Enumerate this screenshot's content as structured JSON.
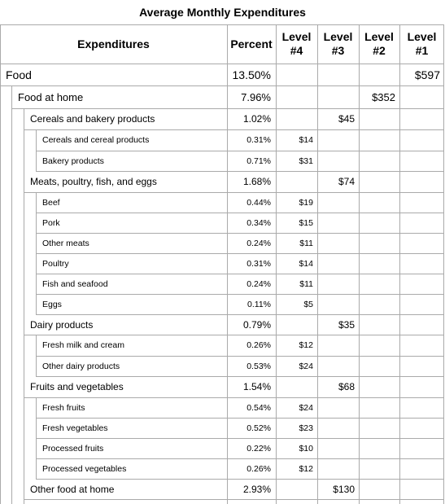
{
  "title": "Average Monthly Expenditures",
  "headers": {
    "expenditures": "Expenditures",
    "percent": "Percent",
    "level4": "Level\n#4",
    "level3": "Level\n#3",
    "level2": "Level\n#2",
    "level1": "Level\n#1"
  },
  "rows": [
    {
      "label": "Food",
      "depth": 0,
      "percent": "13.50%",
      "level": 1,
      "amount": "$597"
    },
    {
      "label": "Food at home",
      "depth": 1,
      "percent": "7.96%",
      "level": 2,
      "amount": "$352"
    },
    {
      "label": "Cereals and bakery products",
      "depth": 2,
      "percent": "1.02%",
      "level": 3,
      "amount": "$45"
    },
    {
      "label": "Cereals and cereal products",
      "depth": 3,
      "percent": "0.31%",
      "level": 4,
      "amount": "$14"
    },
    {
      "label": "Bakery products",
      "depth": 3,
      "percent": "0.71%",
      "level": 4,
      "amount": "$31"
    },
    {
      "label": "Meats, poultry, fish, and eggs",
      "depth": 2,
      "percent": "1.68%",
      "level": 3,
      "amount": "$74"
    },
    {
      "label": "Beef",
      "depth": 3,
      "percent": "0.44%",
      "level": 4,
      "amount": "$19"
    },
    {
      "label": "Pork",
      "depth": 3,
      "percent": "0.34%",
      "level": 4,
      "amount": "$15"
    },
    {
      "label": "Other meats",
      "depth": 3,
      "percent": "0.24%",
      "level": 4,
      "amount": "$11"
    },
    {
      "label": "Poultry",
      "depth": 3,
      "percent": "0.31%",
      "level": 4,
      "amount": "$14"
    },
    {
      "label": "Fish and seafood",
      "depth": 3,
      "percent": "0.24%",
      "level": 4,
      "amount": "$11"
    },
    {
      "label": "Eggs",
      "depth": 3,
      "percent": "0.11%",
      "level": 4,
      "amount": "$5"
    },
    {
      "label": "Dairy products",
      "depth": 2,
      "percent": "0.79%",
      "level": 3,
      "amount": "$35"
    },
    {
      "label": "Fresh milk and cream",
      "depth": 3,
      "percent": "0.26%",
      "level": 4,
      "amount": "$12"
    },
    {
      "label": "Other dairy products",
      "depth": 3,
      "percent": "0.53%",
      "level": 4,
      "amount": "$24"
    },
    {
      "label": "Fruits and vegetables",
      "depth": 2,
      "percent": "1.54%",
      "level": 3,
      "amount": "$68"
    },
    {
      "label": "Fresh fruits",
      "depth": 3,
      "percent": "0.54%",
      "level": 4,
      "amount": "$24"
    },
    {
      "label": "Fresh vegetables",
      "depth": 3,
      "percent": "0.52%",
      "level": 4,
      "amount": "$23"
    },
    {
      "label": "Processed fruits",
      "depth": 3,
      "percent": "0.22%",
      "level": 4,
      "amount": "$10"
    },
    {
      "label": "Processed vegetables",
      "depth": 3,
      "percent": "0.26%",
      "level": 4,
      "amount": "$12"
    },
    {
      "label": "Other food at home",
      "depth": 2,
      "percent": "2.93%",
      "level": 3,
      "amount": "$130"
    }
  ]
}
